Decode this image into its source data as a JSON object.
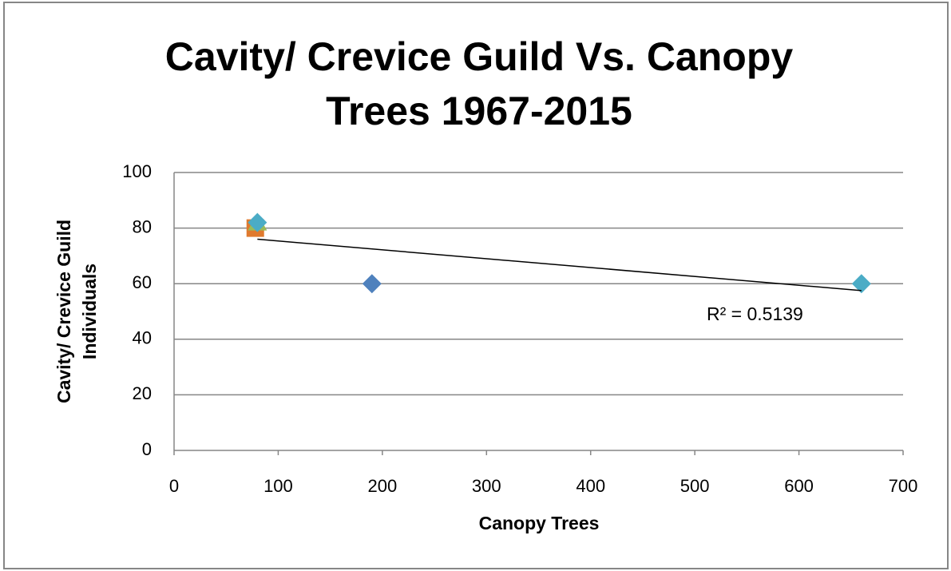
{
  "chart_data": {
    "type": "scatter",
    "title": [
      "Cavity/ Crevice Guild Vs. Canopy",
      "Trees 1967-2015"
    ],
    "x_label": "Canopy Trees",
    "y_label": [
      "Cavity/ Crevice Guild",
      "Individuals"
    ],
    "xlim": [
      0,
      700
    ],
    "xticks": [
      0,
      100,
      200,
      300,
      400,
      500,
      600,
      700
    ],
    "ylim": [
      0,
      100
    ],
    "yticks": [
      0,
      20,
      40,
      60,
      80,
      100
    ],
    "grid": true,
    "series": [
      {
        "color": "#4f81bd",
        "marker": "diamond",
        "x": [
          190
        ],
        "y": [
          60
        ]
      },
      {
        "color": "#e07a2e",
        "marker": "square",
        "x": [
          78
        ],
        "y": [
          80
        ]
      },
      {
        "color": "#9bbb59",
        "marker": "triangle",
        "x": [
          80
        ],
        "y": [
          82
        ]
      },
      {
        "color": "#4bacc6",
        "marker": "diamond",
        "x": [
          80,
          660
        ],
        "y": [
          82,
          60
        ]
      }
    ],
    "trendline": {
      "x": [
        80,
        660
      ],
      "y": [
        76,
        57.5
      ],
      "color": "#000000",
      "label": "R² = 0.5139"
    }
  }
}
